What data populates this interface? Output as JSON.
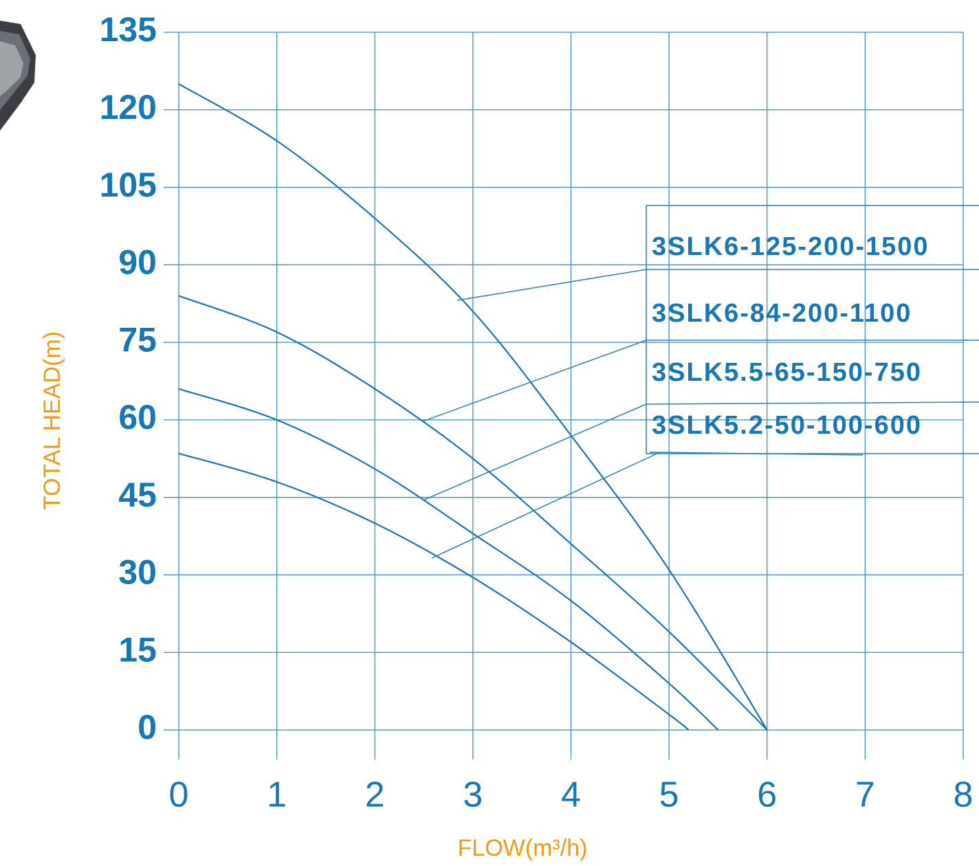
{
  "chart_data": {
    "type": "line",
    "ylabel": "TOTAL HEAD(m)",
    "xlabel": "FLOW(m³/h)",
    "xlim": [
      0,
      8
    ],
    "ylim": [
      0,
      135
    ],
    "xticks": [
      0,
      1,
      2,
      3,
      4,
      5,
      6,
      7,
      8
    ],
    "yticks": [
      0,
      15,
      30,
      45,
      60,
      75,
      90,
      105,
      120,
      135
    ],
    "grid": true,
    "series": [
      {
        "name": "3SLK6-125-200-1500",
        "color": "#1f73ad",
        "x": [
          0,
          1,
          2,
          3,
          4,
          5,
          6
        ],
        "values": [
          125,
          114,
          99,
          81,
          57,
          31,
          0
        ]
      },
      {
        "name": "3SLK6-84-200-1100",
        "color": "#1f73ad",
        "x": [
          0,
          1,
          2,
          3,
          4,
          5,
          6
        ],
        "values": [
          84,
          77,
          66,
          52.5,
          36,
          19,
          0
        ]
      },
      {
        "name": "3SLK5.5-65-150-750",
        "color": "#1f73ad",
        "x": [
          0,
          1,
          2,
          3,
          4,
          5,
          5.5
        ],
        "values": [
          66,
          60,
          50.5,
          38,
          25,
          9,
          0
        ]
      },
      {
        "name": "3SLK5.2-50-100-600",
        "color": "#1f73ad",
        "x": [
          0,
          1,
          2,
          3,
          4,
          5,
          5.2
        ],
        "values": [
          53.5,
          48,
          40,
          29.5,
          17,
          3,
          0
        ]
      }
    ]
  }
}
